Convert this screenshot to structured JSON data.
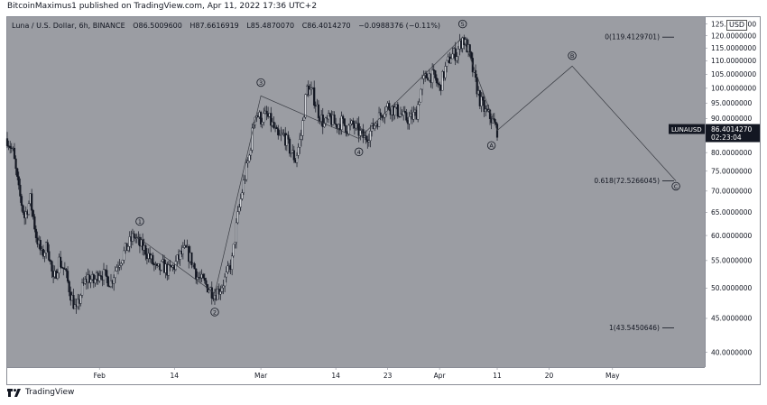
{
  "header": {
    "publisher": "BitcoinMaximus1 published on TradingView.com, Apr 11, 2022 17:36 UTC+2"
  },
  "legend": {
    "symbol": "Luna / U.S. Dollar, 6h, BINANCE",
    "open": "O86.5009600",
    "high": "H87.6616919",
    "low": "L85.4870070",
    "close": "C86.4014270",
    "change": "−0.0988376 (−0.11%)"
  },
  "currency": "USD",
  "price_tag": {
    "symbol": "LUNAUSD",
    "price": "86.4014270",
    "countdown": "02:23:04"
  },
  "footer": {
    "brand": "TradingView"
  },
  "colors": {
    "plot_bg": "#9b9da3",
    "candle": "#131722",
    "axis_text": "#131722",
    "price_tag_bg": "#131722"
  },
  "chart_data": {
    "type": "candlestick",
    "y_scale": "log",
    "ylim": [
      38,
      128
    ],
    "x_range": [
      "2022-01-16",
      "2022-05-17"
    ],
    "y_ticks": [
      "40.0000000",
      "45.0000000",
      "50.0000000",
      "55.0000000",
      "60.0000000",
      "65.0000000",
      "70.0000000",
      "75.0000000",
      "80.0000000",
      "85.0000000",
      "90.0000000",
      "95.0000000",
      "100.0000000",
      "105.0000000",
      "110.0000000",
      "115.0000000",
      "120.0000000",
      "125.0000000"
    ],
    "x_ticks": [
      {
        "date": "2022-02-01",
        "label": "Feb"
      },
      {
        "date": "2022-02-14",
        "label": "14"
      },
      {
        "date": "2022-03-01",
        "label": "Mar"
      },
      {
        "date": "2022-03-14",
        "label": "14"
      },
      {
        "date": "2022-03-23",
        "label": "23"
      },
      {
        "date": "2022-04-01",
        "label": "Apr"
      },
      {
        "date": "2022-04-11",
        "label": "11"
      },
      {
        "date": "2022-04-20",
        "label": "20"
      },
      {
        "date": "2022-05-01",
        "label": "May"
      }
    ],
    "price_path": [
      [
        "2022-01-16",
        84
      ],
      [
        "2022-01-17",
        80
      ],
      [
        "2022-01-18",
        70
      ],
      [
        "2022-01-19",
        64
      ],
      [
        "2022-01-20",
        68
      ],
      [
        "2022-01-21",
        60
      ],
      [
        "2022-01-22",
        56
      ],
      [
        "2022-01-23",
        58
      ],
      [
        "2022-01-24",
        51
      ],
      [
        "2022-01-25",
        55
      ],
      [
        "2022-01-26",
        53
      ],
      [
        "2022-01-27",
        49
      ],
      [
        "2022-01-28",
        46
      ],
      [
        "2022-01-29",
        50
      ],
      [
        "2022-01-30",
        52
      ],
      [
        "2022-01-31",
        51
      ],
      [
        "2022-02-01",
        53
      ],
      [
        "2022-02-02",
        52
      ],
      [
        "2022-02-03",
        51
      ],
      [
        "2022-02-04",
        54
      ],
      [
        "2022-02-05",
        56
      ],
      [
        "2022-02-06",
        58
      ],
      [
        "2022-02-07",
        60
      ],
      [
        "2022-02-08",
        58
      ],
      [
        "2022-02-09",
        57
      ],
      [
        "2022-02-10",
        55
      ],
      [
        "2022-02-11",
        53
      ],
      [
        "2022-02-12",
        54
      ],
      [
        "2022-02-13",
        53
      ],
      [
        "2022-02-14",
        54
      ],
      [
        "2022-02-15",
        56
      ],
      [
        "2022-02-16",
        57
      ],
      [
        "2022-02-17",
        55
      ],
      [
        "2022-02-18",
        52
      ],
      [
        "2022-02-19",
        51
      ],
      [
        "2022-02-20",
        50
      ],
      [
        "2022-02-21",
        49
      ],
      [
        "2022-02-22",
        50
      ],
      [
        "2022-02-23",
        52
      ],
      [
        "2022-02-24",
        55
      ],
      [
        "2022-02-25",
        64
      ],
      [
        "2022-02-26",
        72
      ],
      [
        "2022-02-27",
        79
      ],
      [
        "2022-02-28",
        92
      ],
      [
        "2022-03-01",
        90
      ],
      [
        "2022-03-02",
        91
      ],
      [
        "2022-03-03",
        88
      ],
      [
        "2022-03-04",
        84
      ],
      [
        "2022-03-05",
        85
      ],
      [
        "2022-03-06",
        81
      ],
      [
        "2022-03-07",
        78
      ],
      [
        "2022-03-08",
        85
      ],
      [
        "2022-03-09",
        100
      ],
      [
        "2022-03-10",
        98
      ],
      [
        "2022-03-11",
        92
      ],
      [
        "2022-03-12",
        88
      ],
      [
        "2022-03-13",
        90
      ],
      [
        "2022-03-14",
        88
      ],
      [
        "2022-03-15",
        89
      ],
      [
        "2022-03-16",
        87
      ],
      [
        "2022-03-17",
        88
      ],
      [
        "2022-03-18",
        86
      ],
      [
        "2022-03-19",
        84
      ],
      [
        "2022-03-20",
        86
      ],
      [
        "2022-03-21",
        89
      ],
      [
        "2022-03-22",
        92
      ],
      [
        "2022-03-23",
        94
      ],
      [
        "2022-03-24",
        93
      ],
      [
        "2022-03-25",
        92
      ],
      [
        "2022-03-26",
        90
      ],
      [
        "2022-03-27",
        90
      ],
      [
        "2022-03-28",
        92
      ],
      [
        "2022-03-29",
        102
      ],
      [
        "2022-03-30",
        105
      ],
      [
        "2022-03-31",
        104
      ],
      [
        "2022-04-01",
        100
      ],
      [
        "2022-04-02",
        107
      ],
      [
        "2022-04-03",
        112
      ],
      [
        "2022-04-04",
        113
      ],
      [
        "2022-04-05",
        119
      ],
      [
        "2022-04-06",
        114
      ],
      [
        "2022-04-07",
        104
      ],
      [
        "2022-04-08",
        96
      ],
      [
        "2022-04-09",
        92
      ],
      [
        "2022-04-10",
        90
      ],
      [
        "2022-04-11",
        86.4
      ]
    ],
    "wave_path": [
      [
        "2022-02-07",
        60.2
      ],
      [
        "2022-02-21",
        49.1
      ],
      [
        "2022-03-01",
        97.4
      ],
      [
        "2022-03-18",
        84.0
      ],
      [
        "2022-04-05",
        119.41
      ],
      [
        "2022-04-11",
        86.4
      ],
      [
        "2022-04-24",
        108
      ],
      [
        "2022-05-12",
        72.5
      ]
    ],
    "wave_labels": [
      {
        "label": "1",
        "date": "2022-02-08",
        "price": 63.0
      },
      {
        "label": "2",
        "date": "2022-02-21",
        "price": 46.0
      },
      {
        "label": "3",
        "date": "2022-03-01",
        "price": 102.0
      },
      {
        "label": "4",
        "date": "2022-03-18",
        "price": 80.2
      },
      {
        "label": "5",
        "date": "2022-04-05",
        "price": 125.0
      },
      {
        "label": "A",
        "date": "2022-04-10",
        "price": 82.0
      },
      {
        "label": "B",
        "date": "2022-04-24",
        "price": 112.0
      },
      {
        "label": "C",
        "date": "2022-05-12",
        "price": 71.2
      }
    ],
    "fib_levels": [
      {
        "text": "0(119.4129701)",
        "price": 119.4129701
      },
      {
        "text": "0.618(72.5266045)",
        "price": 72.5266045
      },
      {
        "text": "1(43.5450646)",
        "price": 43.5450646
      }
    ]
  }
}
